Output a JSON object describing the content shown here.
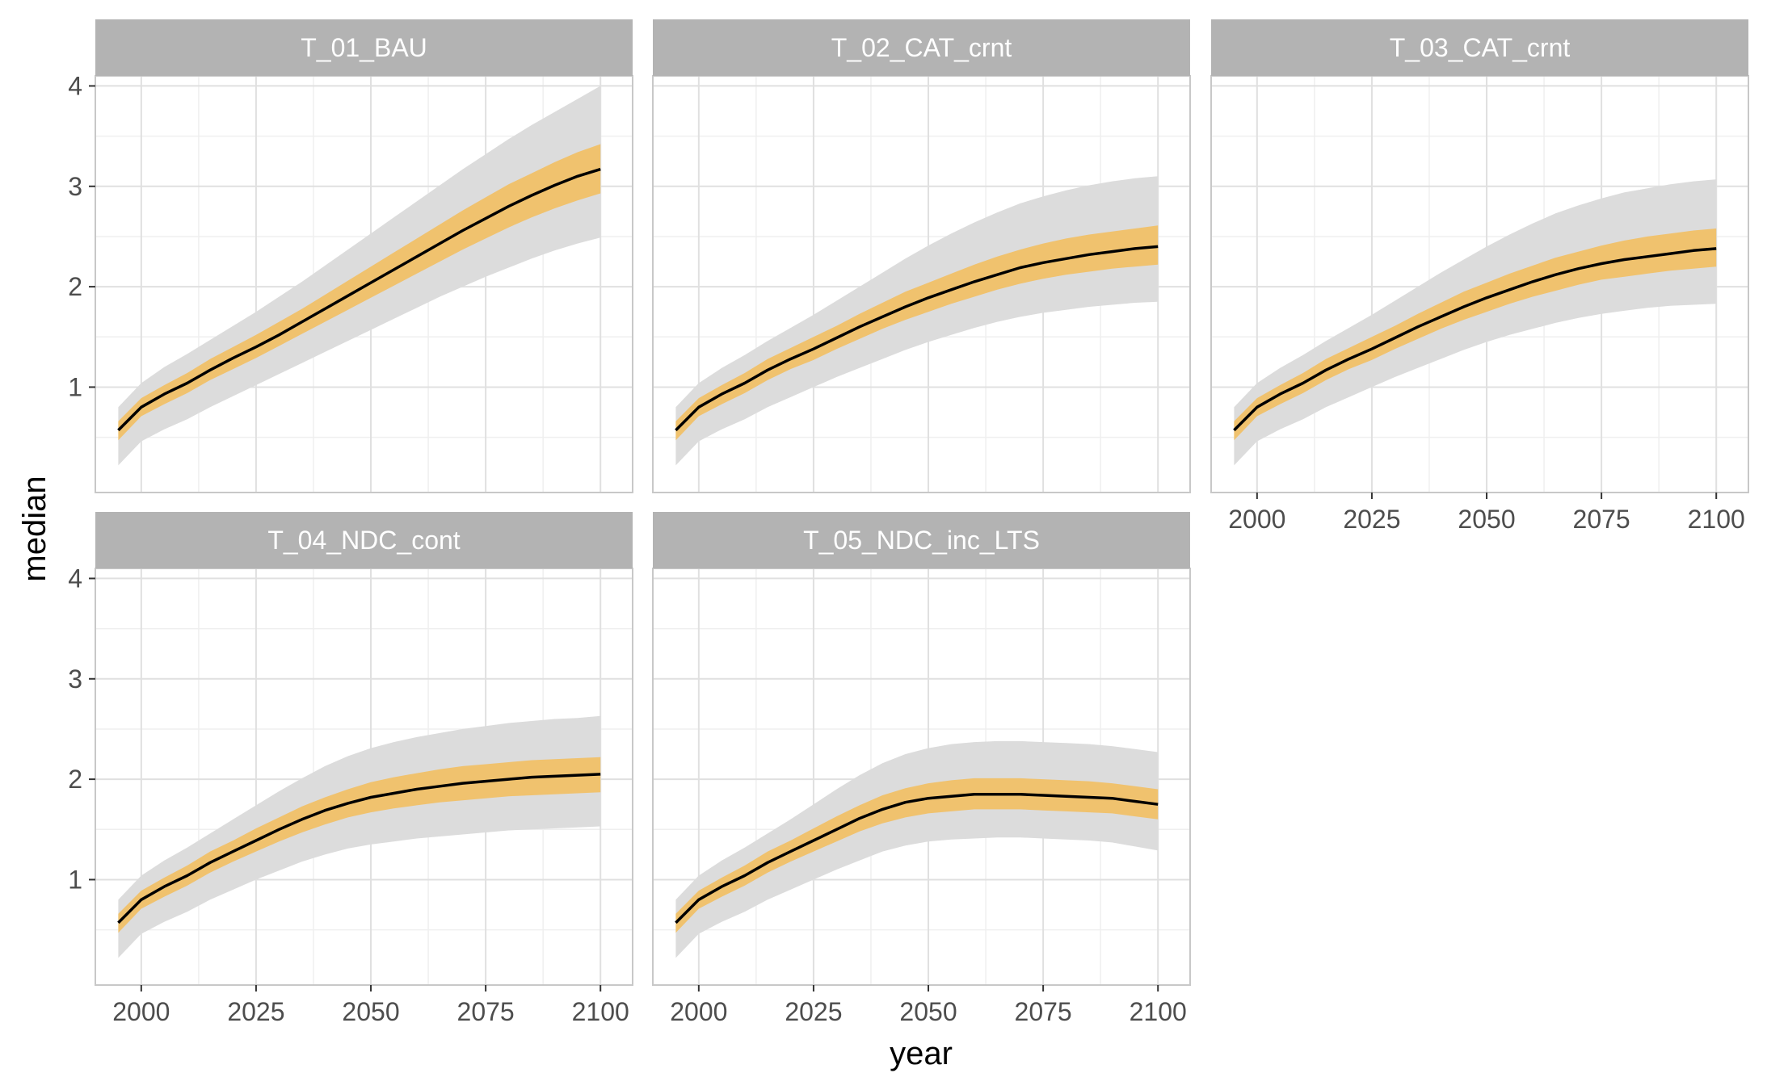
{
  "chart_data": {
    "type": "area",
    "xlabel": "year",
    "ylabel": "median",
    "xlim": [
      1990,
      2107
    ],
    "ylim": [
      -0.05,
      4.1
    ],
    "x_ticks": [
      2000,
      2025,
      2050,
      2075,
      2100
    ],
    "y_ticks": [
      1,
      2,
      3,
      4
    ],
    "grid": true,
    "colors": {
      "median_line": "#000000",
      "inner_band": "#f0c26e",
      "outer_band": "#dcdcdc",
      "strip": "#b3b3b3",
      "grid_major": "#e0e0e0",
      "grid_minor": "#efefef",
      "panel_border": "#c8c8c8"
    },
    "x": [
      1995,
      2000,
      2005,
      2010,
      2015,
      2020,
      2025,
      2030,
      2035,
      2040,
      2045,
      2050,
      2055,
      2060,
      2065,
      2070,
      2075,
      2080,
      2085,
      2090,
      2095,
      2100
    ],
    "panels": [
      {
        "title": "T_01_BAU",
        "median": [
          0.57,
          0.8,
          0.93,
          1.04,
          1.17,
          1.29,
          1.4,
          1.52,
          1.65,
          1.78,
          1.91,
          2.04,
          2.17,
          2.3,
          2.43,
          2.56,
          2.68,
          2.8,
          2.91,
          3.01,
          3.1,
          3.17
        ],
        "inner_low": [
          0.47,
          0.71,
          0.83,
          0.94,
          1.07,
          1.18,
          1.29,
          1.41,
          1.53,
          1.65,
          1.77,
          1.89,
          2.01,
          2.13,
          2.25,
          2.37,
          2.48,
          2.59,
          2.69,
          2.78,
          2.86,
          2.93
        ],
        "inner_high": [
          0.66,
          0.89,
          1.02,
          1.14,
          1.28,
          1.4,
          1.52,
          1.65,
          1.78,
          1.92,
          2.06,
          2.2,
          2.34,
          2.48,
          2.62,
          2.76,
          2.89,
          3.02,
          3.13,
          3.24,
          3.34,
          3.42
        ],
        "outer_low": [
          0.22,
          0.46,
          0.58,
          0.68,
          0.8,
          0.91,
          1.02,
          1.13,
          1.24,
          1.35,
          1.46,
          1.57,
          1.68,
          1.79,
          1.9,
          2.0,
          2.1,
          2.19,
          2.28,
          2.36,
          2.43,
          2.49
        ],
        "outer_high": [
          0.8,
          1.04,
          1.2,
          1.33,
          1.47,
          1.61,
          1.75,
          1.9,
          2.05,
          2.21,
          2.37,
          2.53,
          2.69,
          2.85,
          3.01,
          3.17,
          3.32,
          3.47,
          3.61,
          3.74,
          3.87,
          4.0
        ]
      },
      {
        "title": "T_02_CAT_crnt",
        "median": [
          0.57,
          0.8,
          0.93,
          1.04,
          1.17,
          1.28,
          1.38,
          1.49,
          1.6,
          1.7,
          1.8,
          1.89,
          1.97,
          2.05,
          2.12,
          2.19,
          2.24,
          2.28,
          2.32,
          2.35,
          2.38,
          2.4
        ],
        "inner_low": [
          0.47,
          0.71,
          0.83,
          0.94,
          1.07,
          1.18,
          1.27,
          1.38,
          1.48,
          1.58,
          1.67,
          1.75,
          1.83,
          1.9,
          1.97,
          2.03,
          2.08,
          2.12,
          2.15,
          2.18,
          2.2,
          2.22
        ],
        "inner_high": [
          0.66,
          0.89,
          1.02,
          1.14,
          1.28,
          1.39,
          1.5,
          1.61,
          1.73,
          1.84,
          1.95,
          2.04,
          2.13,
          2.22,
          2.3,
          2.37,
          2.43,
          2.48,
          2.52,
          2.55,
          2.58,
          2.61
        ],
        "outer_low": [
          0.22,
          0.46,
          0.58,
          0.68,
          0.8,
          0.9,
          1.0,
          1.1,
          1.19,
          1.28,
          1.37,
          1.45,
          1.52,
          1.59,
          1.65,
          1.7,
          1.74,
          1.77,
          1.8,
          1.82,
          1.84,
          1.85
        ],
        "outer_high": [
          0.8,
          1.04,
          1.19,
          1.32,
          1.46,
          1.59,
          1.72,
          1.86,
          2.0,
          2.14,
          2.28,
          2.41,
          2.53,
          2.64,
          2.74,
          2.83,
          2.9,
          2.96,
          3.01,
          3.05,
          3.08,
          3.1
        ]
      },
      {
        "title": "T_03_CAT_crnt",
        "median": [
          0.57,
          0.8,
          0.93,
          1.04,
          1.17,
          1.28,
          1.38,
          1.49,
          1.6,
          1.7,
          1.8,
          1.89,
          1.97,
          2.05,
          2.12,
          2.18,
          2.23,
          2.27,
          2.3,
          2.33,
          2.36,
          2.38
        ],
        "inner_low": [
          0.47,
          0.71,
          0.83,
          0.94,
          1.07,
          1.18,
          1.27,
          1.38,
          1.48,
          1.58,
          1.67,
          1.75,
          1.83,
          1.9,
          1.96,
          2.02,
          2.07,
          2.1,
          2.13,
          2.16,
          2.18,
          2.2
        ],
        "inner_high": [
          0.66,
          0.89,
          1.02,
          1.14,
          1.28,
          1.39,
          1.5,
          1.61,
          1.73,
          1.84,
          1.95,
          2.04,
          2.13,
          2.21,
          2.29,
          2.35,
          2.41,
          2.46,
          2.5,
          2.53,
          2.56,
          2.58
        ],
        "outer_low": [
          0.22,
          0.46,
          0.58,
          0.68,
          0.8,
          0.9,
          1.0,
          1.1,
          1.19,
          1.28,
          1.37,
          1.45,
          1.52,
          1.58,
          1.64,
          1.69,
          1.73,
          1.76,
          1.79,
          1.81,
          1.82,
          1.83
        ],
        "outer_high": [
          0.8,
          1.04,
          1.19,
          1.32,
          1.46,
          1.59,
          1.72,
          1.86,
          2.0,
          2.14,
          2.27,
          2.4,
          2.52,
          2.63,
          2.73,
          2.81,
          2.88,
          2.94,
          2.98,
          3.02,
          3.05,
          3.07
        ]
      },
      {
        "title": "T_04_NDC_cont",
        "median": [
          0.57,
          0.8,
          0.93,
          1.04,
          1.17,
          1.28,
          1.39,
          1.5,
          1.6,
          1.69,
          1.76,
          1.82,
          1.86,
          1.9,
          1.93,
          1.96,
          1.98,
          2.0,
          2.02,
          2.03,
          2.04,
          2.05
        ],
        "inner_low": [
          0.47,
          0.71,
          0.83,
          0.94,
          1.07,
          1.18,
          1.28,
          1.38,
          1.47,
          1.55,
          1.62,
          1.67,
          1.71,
          1.74,
          1.77,
          1.79,
          1.81,
          1.83,
          1.84,
          1.85,
          1.86,
          1.87
        ],
        "inner_high": [
          0.66,
          0.89,
          1.02,
          1.14,
          1.28,
          1.39,
          1.51,
          1.62,
          1.73,
          1.82,
          1.9,
          1.97,
          2.02,
          2.06,
          2.1,
          2.13,
          2.15,
          2.17,
          2.19,
          2.2,
          2.21,
          2.22
        ],
        "outer_low": [
          0.22,
          0.46,
          0.58,
          0.68,
          0.8,
          0.9,
          1.0,
          1.09,
          1.18,
          1.25,
          1.31,
          1.35,
          1.38,
          1.41,
          1.43,
          1.45,
          1.47,
          1.49,
          1.5,
          1.51,
          1.52,
          1.53
        ],
        "outer_high": [
          0.8,
          1.04,
          1.19,
          1.32,
          1.46,
          1.6,
          1.74,
          1.88,
          2.01,
          2.13,
          2.23,
          2.31,
          2.37,
          2.42,
          2.46,
          2.5,
          2.53,
          2.56,
          2.58,
          2.6,
          2.61,
          2.63
        ]
      },
      {
        "title": "T_05_NDC_inc_LTS",
        "median": [
          0.57,
          0.8,
          0.93,
          1.04,
          1.17,
          1.28,
          1.39,
          1.5,
          1.61,
          1.7,
          1.77,
          1.81,
          1.83,
          1.85,
          1.85,
          1.85,
          1.84,
          1.83,
          1.82,
          1.81,
          1.78,
          1.75
        ],
        "inner_low": [
          0.47,
          0.71,
          0.83,
          0.94,
          1.07,
          1.18,
          1.28,
          1.38,
          1.48,
          1.56,
          1.62,
          1.66,
          1.68,
          1.7,
          1.7,
          1.7,
          1.69,
          1.68,
          1.67,
          1.66,
          1.63,
          1.6
        ],
        "inner_high": [
          0.66,
          0.89,
          1.02,
          1.14,
          1.28,
          1.39,
          1.51,
          1.63,
          1.74,
          1.84,
          1.91,
          1.96,
          1.99,
          2.01,
          2.01,
          2.01,
          2.0,
          1.99,
          1.98,
          1.96,
          1.93,
          1.9
        ],
        "outer_low": [
          0.22,
          0.46,
          0.58,
          0.68,
          0.8,
          0.9,
          1.0,
          1.1,
          1.19,
          1.28,
          1.34,
          1.38,
          1.4,
          1.41,
          1.42,
          1.42,
          1.41,
          1.4,
          1.39,
          1.37,
          1.33,
          1.29
        ],
        "outer_high": [
          0.8,
          1.04,
          1.19,
          1.32,
          1.46,
          1.6,
          1.75,
          1.9,
          2.04,
          2.16,
          2.25,
          2.31,
          2.35,
          2.37,
          2.38,
          2.38,
          2.37,
          2.36,
          2.35,
          2.33,
          2.3,
          2.27
        ]
      }
    ]
  }
}
